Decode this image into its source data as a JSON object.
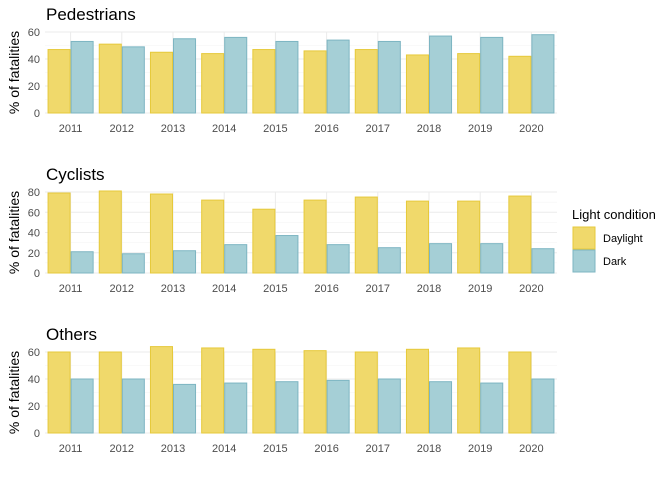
{
  "chart_data": {
    "type": "bar",
    "ylabel": "% of fatalities",
    "legend": {
      "title": "Light condition",
      "position": "right",
      "entries": [
        {
          "name": "Daylight",
          "fill": "#f0d96b",
          "stroke": "#e6c93b"
        },
        {
          "name": "Dark",
          "fill": "#a5cfd6",
          "stroke": "#7db5c2"
        }
      ]
    },
    "categories": [
      "2011",
      "2012",
      "2013",
      "2014",
      "2015",
      "2016",
      "2017",
      "2018",
      "2019",
      "2020"
    ],
    "panels": [
      {
        "title": "Pedestrians",
        "ylim": [
          0,
          60
        ],
        "yticks": [
          0,
          20,
          40,
          60
        ],
        "series": [
          {
            "name": "Daylight",
            "values": [
              47,
              51,
              45,
              44,
              47,
              46,
              47,
              43,
              44,
              42
            ]
          },
          {
            "name": "Dark",
            "values": [
              53,
              49,
              55,
              56,
              53,
              54,
              53,
              57,
              56,
              58
            ]
          }
        ]
      },
      {
        "title": "Cyclists",
        "ylim": [
          0,
          80
        ],
        "yticks": [
          0,
          20,
          40,
          60,
          80
        ],
        "series": [
          {
            "name": "Daylight",
            "values": [
              79,
              81,
              78,
              72,
              63,
              72,
              75,
              71,
              71,
              76
            ]
          },
          {
            "name": "Dark",
            "values": [
              21,
              19,
              22,
              28,
              37,
              28,
              25,
              29,
              29,
              24
            ]
          }
        ]
      },
      {
        "title": "Others",
        "ylim": [
          0,
          60
        ],
        "yticks": [
          0,
          20,
          40,
          60
        ],
        "series": [
          {
            "name": "Daylight",
            "values": [
              60,
              60,
              64,
              63,
              62,
              61,
              60,
              62,
              63,
              60
            ]
          },
          {
            "name": "Dark",
            "values": [
              40,
              40,
              36,
              37,
              38,
              39,
              40,
              38,
              37,
              40
            ]
          }
        ]
      }
    ]
  }
}
